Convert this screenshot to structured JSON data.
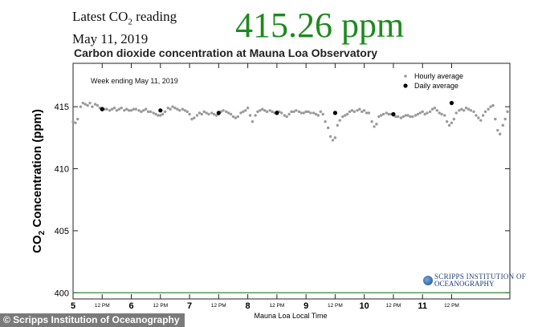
{
  "header": {
    "latest_label_pre": "Latest CO",
    "latest_label_sub": "2",
    "latest_label_post": " reading",
    "date": "May 11, 2019",
    "reading": "415.26 ppm"
  },
  "credit": "© Scripps Institution of Oceanography",
  "logo": {
    "line1": "SCRIPPS INSTITUTION OF",
    "line2": "OCEANOGRAPHY"
  },
  "colors": {
    "reading": "#1e8a1e",
    "hourly": "#9a9a9a",
    "daily": "#000000",
    "baseline": "#2e8b2e"
  },
  "chart_data": {
    "type": "scatter",
    "title": "Carbon dioxide concentration at Mauna Loa Observatory",
    "annotation": "Week ending May 11, 2019",
    "xlabel": "Mauna Loa Local Time",
    "ylabel": "CO2 Concentration (ppm)",
    "ylim": [
      399.5,
      418.5
    ],
    "xlim": [
      5,
      12.5
    ],
    "y_ticks": [
      400,
      405,
      410,
      415
    ],
    "x_ticks": [
      {
        "value": 5,
        "label": "5",
        "major": true
      },
      {
        "value": 5.5,
        "label": "12 PM",
        "major": false
      },
      {
        "value": 6,
        "label": "6",
        "major": true
      },
      {
        "value": 6.5,
        "label": "12 PM",
        "major": false
      },
      {
        "value": 7,
        "label": "7",
        "major": true
      },
      {
        "value": 7.5,
        "label": "12 PM",
        "major": false
      },
      {
        "value": 8,
        "label": "8",
        "major": true
      },
      {
        "value": 8.5,
        "label": "12 PM",
        "major": false
      },
      {
        "value": 9,
        "label": "9",
        "major": true
      },
      {
        "value": 9.5,
        "label": "12 PM",
        "major": false
      },
      {
        "value": 10,
        "label": "10",
        "major": true
      },
      {
        "value": 10.5,
        "label": "12 PM",
        "major": false
      },
      {
        "value": 11,
        "label": "11",
        "major": true
      },
      {
        "value": 11.5,
        "label": "12 PM",
        "major": false
      }
    ],
    "legend": {
      "placement": "top-right",
      "entries": [
        "Hourly average",
        "Daily average"
      ]
    },
    "baseline": 400,
    "series": [
      {
        "name": "Hourly average",
        "x": [
          5.0,
          5.04,
          5.08,
          5.13,
          5.17,
          5.21,
          5.25,
          5.29,
          5.33,
          5.38,
          5.42,
          5.46,
          5.5,
          5.54,
          5.58,
          5.63,
          5.67,
          5.71,
          5.75,
          5.79,
          5.83,
          5.88,
          5.92,
          5.96,
          6.0,
          6.04,
          6.08,
          6.13,
          6.17,
          6.21,
          6.25,
          6.29,
          6.33,
          6.38,
          6.42,
          6.46,
          6.5,
          6.54,
          6.58,
          6.63,
          6.67,
          6.71,
          6.75,
          6.79,
          6.83,
          6.88,
          6.92,
          6.96,
          7.0,
          7.04,
          7.08,
          7.13,
          7.17,
          7.21,
          7.25,
          7.29,
          7.33,
          7.38,
          7.42,
          7.46,
          7.5,
          7.54,
          7.58,
          7.63,
          7.67,
          7.71,
          7.75,
          7.79,
          7.83,
          7.88,
          7.92,
          7.96,
          8.0,
          8.04,
          8.08,
          8.13,
          8.17,
          8.21,
          8.25,
          8.29,
          8.33,
          8.38,
          8.42,
          8.46,
          8.5,
          8.54,
          8.58,
          8.63,
          8.67,
          8.71,
          8.75,
          8.79,
          8.83,
          8.88,
          8.92,
          8.96,
          9.0,
          9.04,
          9.08,
          9.13,
          9.17,
          9.21,
          9.25,
          9.29,
          9.33,
          9.38,
          9.42,
          9.46,
          9.5,
          9.54,
          9.58,
          9.63,
          9.67,
          9.71,
          9.75,
          9.79,
          9.83,
          9.88,
          9.92,
          9.96,
          10.0,
          10.04,
          10.08,
          10.13,
          10.17,
          10.21,
          10.25,
          10.29,
          10.33,
          10.38,
          10.42,
          10.46,
          10.5,
          10.54,
          10.58,
          10.63,
          10.67,
          10.71,
          10.75,
          10.79,
          10.83,
          10.88,
          10.92,
          10.96,
          11.0,
          11.04,
          11.08,
          11.13,
          11.17,
          11.21,
          11.25,
          11.29,
          11.33,
          11.38,
          11.42,
          11.46,
          11.5,
          11.54,
          11.58,
          11.63,
          11.67,
          11.71,
          11.75,
          11.79,
          11.83,
          11.88,
          11.92,
          11.96,
          12.0,
          12.04,
          12.08,
          12.13,
          12.17,
          12.21,
          12.25,
          12.29,
          12.33,
          12.38,
          12.42,
          12.46
        ],
        "y": [
          413.8,
          413.7,
          414.0,
          415.0,
          415.3,
          415.2,
          415.1,
          415.3,
          415.0,
          415.2,
          415.1,
          414.9,
          414.9,
          414.8,
          414.8,
          414.7,
          414.8,
          414.9,
          414.7,
          414.8,
          414.9,
          414.7,
          414.8,
          414.7,
          414.7,
          414.8,
          414.8,
          414.7,
          414.6,
          414.7,
          414.8,
          414.6,
          414.6,
          414.5,
          414.4,
          414.3,
          414.3,
          414.4,
          414.6,
          414.9,
          414.8,
          415.0,
          414.9,
          414.8,
          414.7,
          414.8,
          414.7,
          414.6,
          414.4,
          414.0,
          414.1,
          414.3,
          414.5,
          414.4,
          414.6,
          414.5,
          414.4,
          414.5,
          414.4,
          414.3,
          414.4,
          414.6,
          414.7,
          414.6,
          414.5,
          414.4,
          414.2,
          414.1,
          414.2,
          414.5,
          414.6,
          414.7,
          414.9,
          414.3,
          413.8,
          414.3,
          414.6,
          414.7,
          414.8,
          414.7,
          414.6,
          414.7,
          414.6,
          414.5,
          414.6,
          414.6,
          414.5,
          414.3,
          414.2,
          414.4,
          414.6,
          414.6,
          414.7,
          414.6,
          414.5,
          414.5,
          414.6,
          414.6,
          414.5,
          414.5,
          414.4,
          414.3,
          414.6,
          414.4,
          413.8,
          413.3,
          412.6,
          412.3,
          412.5,
          413.5,
          413.9,
          414.2,
          414.3,
          414.4,
          414.6,
          414.7,
          414.6,
          414.7,
          414.8,
          414.6,
          414.7,
          414.5,
          414.5,
          413.8,
          413.4,
          413.6,
          414.2,
          414.3,
          414.4,
          414.5,
          414.4,
          414.4,
          414.3,
          414.2,
          414.2,
          414.1,
          414.2,
          414.3,
          414.3,
          414.2,
          414.2,
          414.3,
          414.4,
          414.5,
          414.6,
          414.4,
          414.5,
          414.6,
          414.8,
          414.9,
          414.7,
          414.5,
          414.4,
          414.3,
          413.8,
          413.5,
          413.7,
          414.0,
          414.5,
          414.7,
          414.8,
          414.7,
          414.9,
          414.8,
          414.7,
          414.6,
          414.3,
          414.1,
          413.9,
          414.3,
          414.6,
          414.8,
          415.0,
          415.1,
          414.0,
          413.1,
          412.8,
          413.5,
          414.0,
          414.6
        ]
      },
      {
        "name": "Daily average",
        "x": [
          5.5,
          6.5,
          7.5,
          8.5,
          9.5,
          10.5,
          11.5
        ],
        "y": [
          414.8,
          414.7,
          414.5,
          414.5,
          414.5,
          414.4,
          415.3
        ]
      }
    ]
  }
}
